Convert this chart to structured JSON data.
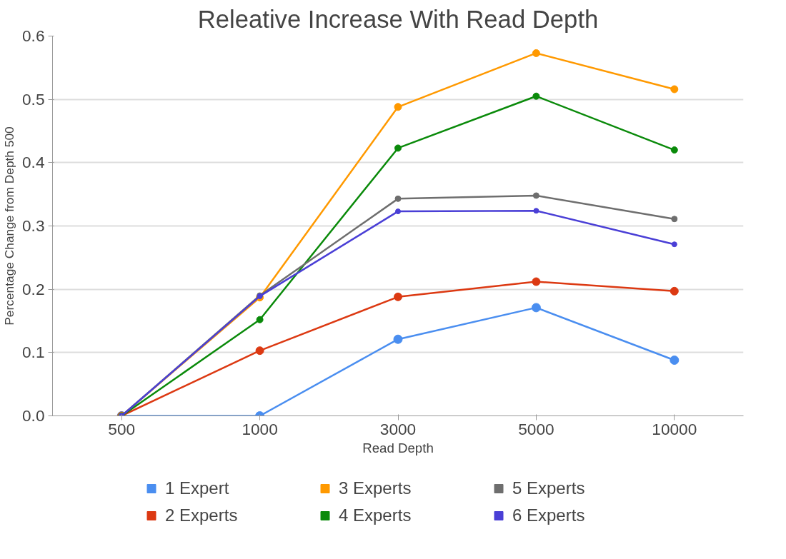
{
  "chart_data": {
    "type": "line",
    "title": "Releative Increase With Read Depth",
    "xlabel": "Read Depth",
    "ylabel": "Percentage Change from Depth 500",
    "categories": [
      "500",
      "1000",
      "3000",
      "5000",
      "10000"
    ],
    "ylim": [
      0,
      0.6
    ],
    "yticks": [
      {
        "value": 0,
        "label": "0.0"
      },
      0.1,
      0.2,
      0.3,
      0.4,
      0.5,
      0.6
    ],
    "grid": "y",
    "legend": "bottom",
    "marker": "circle",
    "line_style": "solid",
    "series": [
      {
        "name": "1 Expert",
        "color": "#4a8ef0",
        "values": [
          0,
          0,
          0.121,
          0.171,
          0.088
        ]
      },
      {
        "name": "2 Experts",
        "color": "#dc3912",
        "values": [
          0,
          0.103,
          0.188,
          0.212,
          0.197
        ]
      },
      {
        "name": "3 Experts",
        "color": "#ff9900",
        "values": [
          0,
          0.187,
          0.488,
          0.573,
          0.516
        ]
      },
      {
        "name": "4 Experts",
        "color": "#0a8a0a",
        "values": [
          0,
          0.152,
          0.423,
          0.505,
          0.42
        ]
      },
      {
        "name": "5 Experts",
        "color": "#6e6e6e",
        "values": [
          0,
          0.19,
          0.343,
          0.348,
          0.311
        ]
      },
      {
        "name": "6 Experts",
        "color": "#4a3fd6",
        "values": [
          0,
          0.189,
          0.323,
          0.324,
          0.271
        ]
      }
    ]
  }
}
